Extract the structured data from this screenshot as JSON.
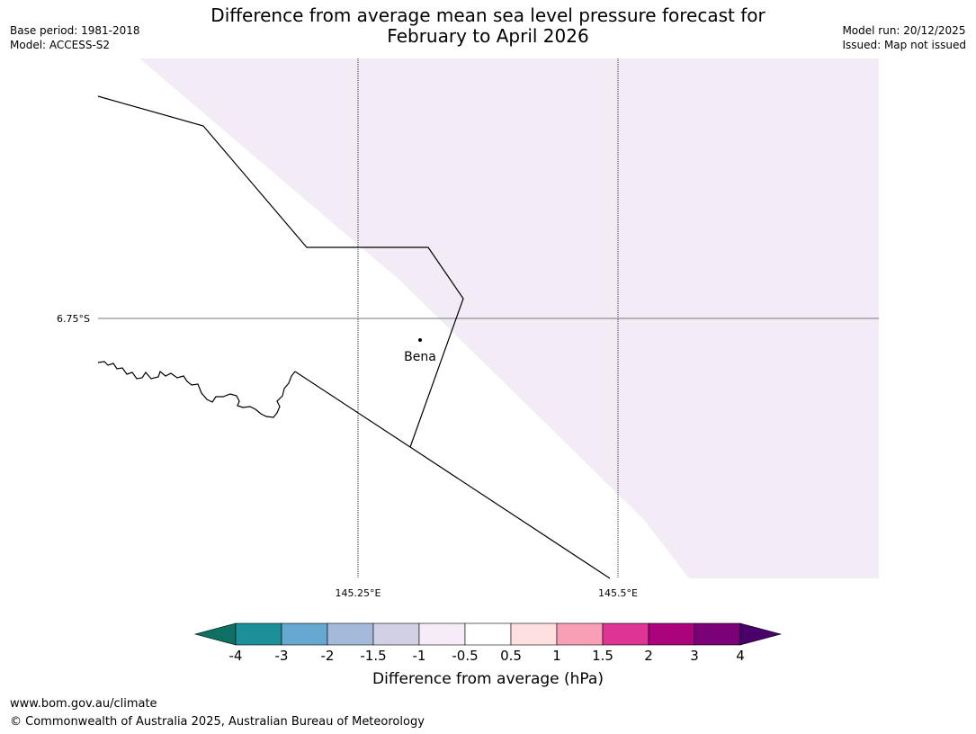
{
  "header": {
    "title_line1": "Difference from average mean sea level pressure forecast for",
    "title_line2": "February to April 2026",
    "base_period": "Base period: 1981-2018",
    "model": "Model: ACCESS-S2",
    "model_run": "Model run: 20/12/2025",
    "issued": "Issued: Map not issued"
  },
  "map": {
    "place_label": "Bena",
    "lat_label": "6.75°S",
    "lon_labels": [
      "145.25°E",
      "145.5°E"
    ],
    "shaded_category": "-1 to -0.5",
    "shaded_color": "#f3ebf5"
  },
  "colorbar": {
    "label": "Difference from average (hPa)",
    "ticks": [
      "-4",
      "-3",
      "-2",
      "-1.5",
      "-1",
      "-0.5",
      "0.5",
      "1",
      "1.5",
      "2",
      "3",
      "4"
    ],
    "colors": [
      "#0e7063",
      "#1b9098",
      "#67a8d0",
      "#a5badb",
      "#d2d0e5",
      "#f6ecf7",
      "#ffffff",
      "#fde0df",
      "#f89fb6",
      "#dc3595",
      "#ab037b",
      "#7a0178",
      "#4a006a"
    ]
  },
  "footer": {
    "url": "www.bom.gov.au/climate",
    "copyright": "© Commonwealth of Australia 2025, Australian Bureau of Meteorology"
  }
}
